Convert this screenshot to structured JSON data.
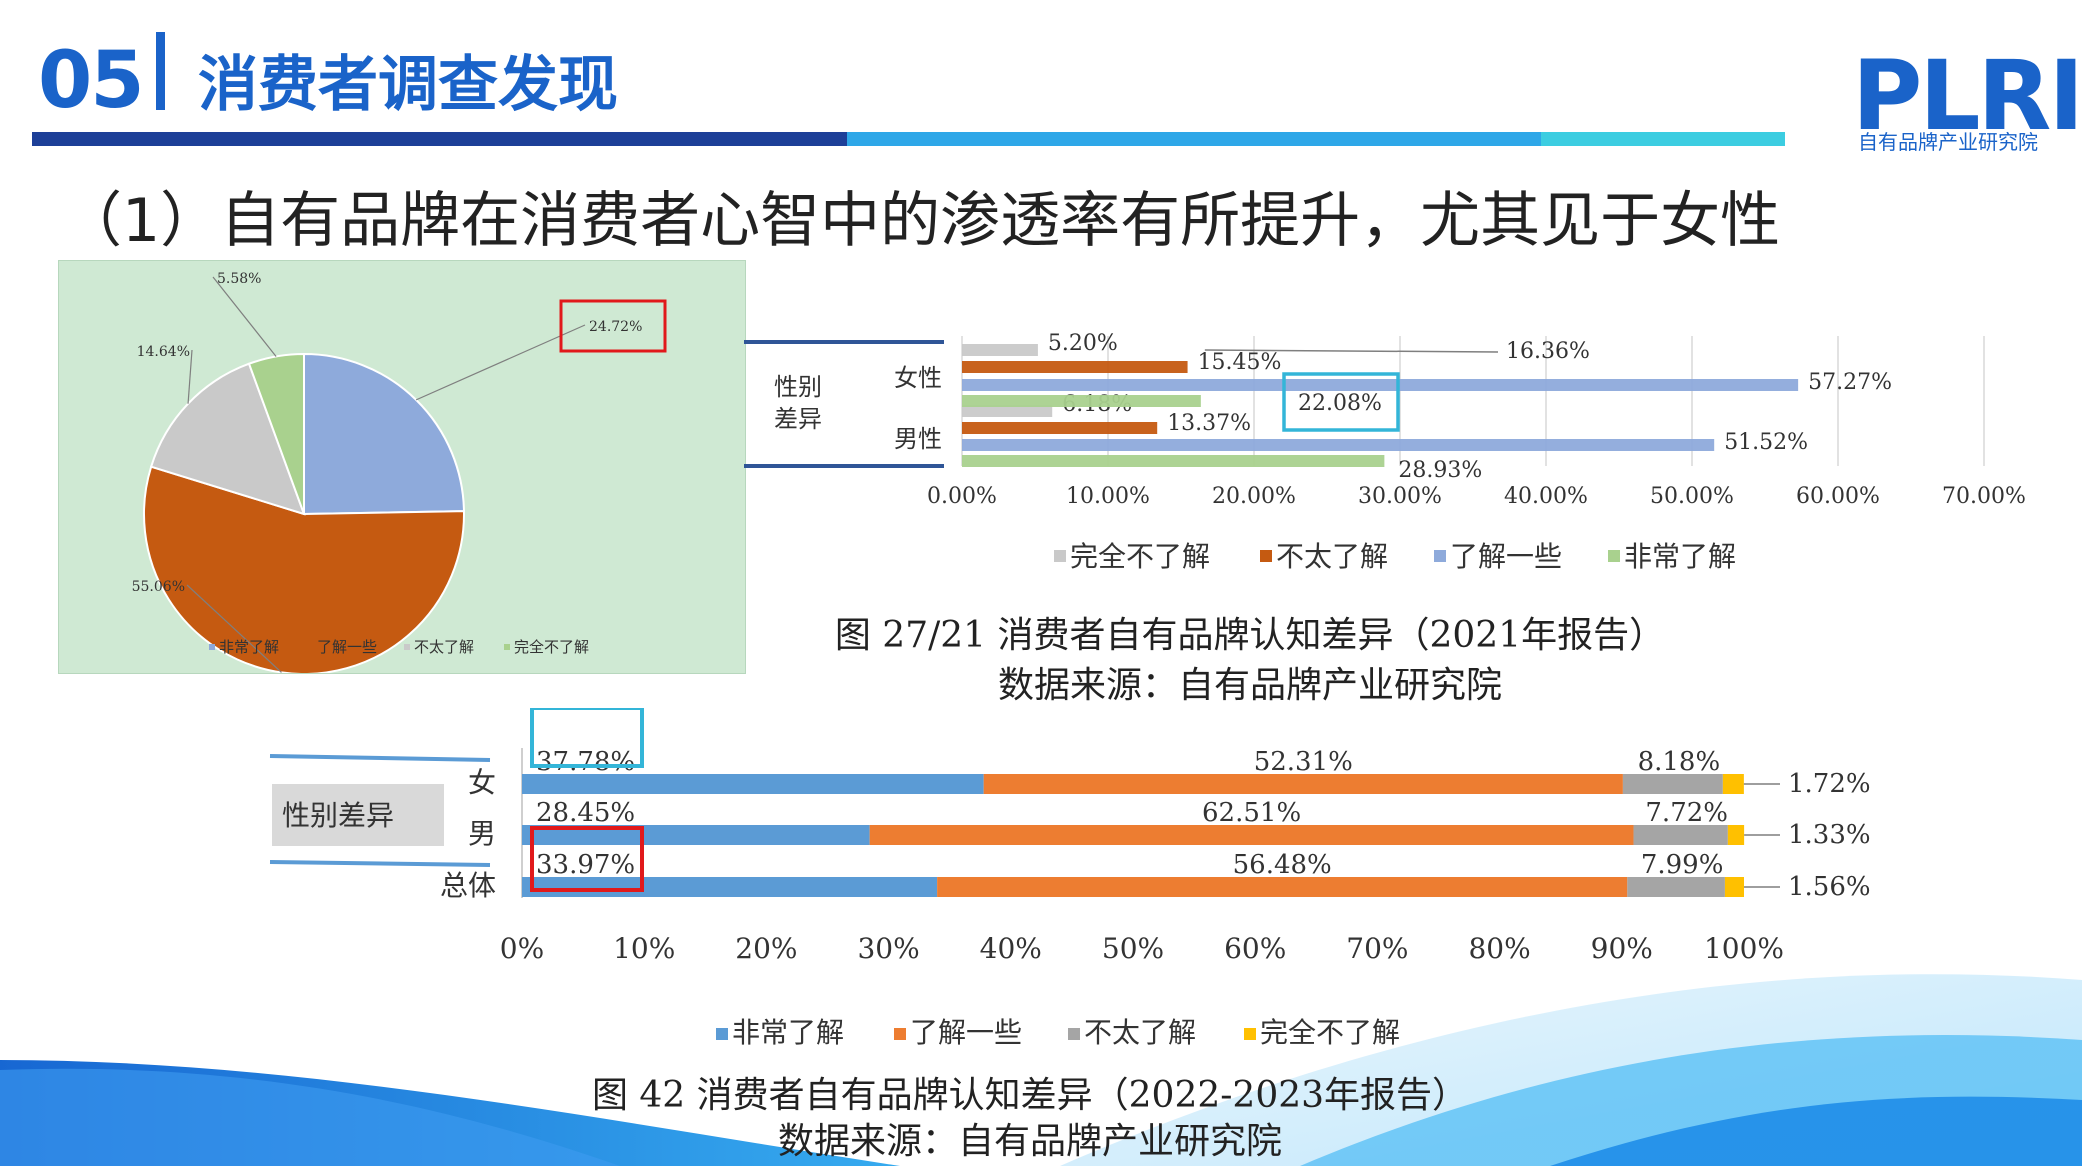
{
  "header": {
    "section_number": "05",
    "section_title": "消费者调查发现",
    "logo_text": "PLRI",
    "logo_subtitle": "自有品牌产业研究院"
  },
  "slide_heading": "（1）自有品牌在消费者心智中的渗透率有所提升，尤其见于女性",
  "colors": {
    "brand_blue": "#1a63c9",
    "pie_blue": "#8eaadb",
    "pie_orange": "#c55a11",
    "pie_gray": "#c9c9c9",
    "pie_green": "#a9d18e",
    "bar2022_blue": "#5b9bd5",
    "bar2022_orange": "#ed7d31",
    "bar2022_gray": "#a5a5a5",
    "bar2022_yellow": "#ffc000",
    "highlight_red": "#e1191b",
    "highlight_cyan": "#33b5d8"
  },
  "chart_data": [
    {
      "type": "pie",
      "labels": [
        "非常了解",
        "了解一些",
        "不太了解",
        "完全不了解"
      ],
      "values": [
        24.72,
        55.06,
        14.64,
        5.58
      ],
      "value_labels": [
        "24.72%",
        "55.06%",
        "14.64%",
        "5.58%"
      ],
      "legend": [
        "非常了解",
        "了解一些",
        "不太了解",
        "完全不了解"
      ],
      "legend_position": "bottom"
    },
    {
      "type": "bar",
      "orientation": "horizontal",
      "categories": [
        "女性",
        "男性"
      ],
      "group_label": "性别差异",
      "series": [
        {
          "name": "完全不了解",
          "values": [
            5.2,
            6.18
          ],
          "labels": [
            "5.20%",
            "6.18%"
          ]
        },
        {
          "name": "不太了解",
          "values": [
            15.45,
            13.37
          ],
          "labels": [
            "15.45%",
            "13.37%"
          ]
        },
        {
          "name": "了解一些",
          "values": [
            57.27,
            51.52
          ],
          "labels": [
            "57.27%",
            "51.52%"
          ]
        },
        {
          "name": "非常了解",
          "values": [
            16.36,
            28.93
          ],
          "labels": [
            "16.36%",
            "28.93%"
          ]
        }
      ],
      "extra_label": "22.08%",
      "xlim": [
        0,
        70
      ],
      "x_ticks": [
        "0.00%",
        "10.00%",
        "20.00%",
        "30.00%",
        "40.00%",
        "50.00%",
        "60.00%",
        "70.00%"
      ],
      "legend": [
        "完全不了解",
        "不太了解",
        "了解一些",
        "非常了解"
      ],
      "legend_position": "bottom"
    },
    {
      "type": "bar",
      "orientation": "horizontal",
      "stacked": true,
      "categories": [
        "女",
        "男",
        "总体"
      ],
      "group_label": "性别差异",
      "series": [
        {
          "name": "非常了解",
          "values": [
            37.78,
            28.45,
            33.97
          ],
          "labels": [
            "37.78%",
            "28.45%",
            "33.97%"
          ]
        },
        {
          "name": "了解一些",
          "values": [
            52.31,
            62.51,
            56.48
          ],
          "labels": [
            "52.31%",
            "62.51%",
            "56.48%"
          ]
        },
        {
          "name": "不太了解",
          "values": [
            8.18,
            7.72,
            7.99
          ],
          "labels": [
            "8.18%",
            "7.72%",
            "7.99%"
          ]
        },
        {
          "name": "完全不了解",
          "values": [
            1.72,
            1.33,
            1.56
          ],
          "labels": [
            "1.72%",
            "1.33%",
            "1.56%"
          ]
        }
      ],
      "xlim": [
        0,
        100
      ],
      "x_ticks": [
        "0%",
        "10%",
        "20%",
        "30%",
        "40%",
        "50%",
        "60%",
        "70%",
        "80%",
        "90%",
        "100%"
      ],
      "legend": [
        "非常了解",
        "了解一些",
        "不太了解",
        "完全不了解"
      ],
      "legend_position": "bottom"
    }
  ],
  "captions": {
    "fig2021_title": "图 27/21 消费者自有品牌认知差异（2021年报告）",
    "fig2021_source": "数据来源：自有品牌产业研究院",
    "fig2022_title": "图 42 消费者自有品牌认知差异（2022-2023年报告）",
    "fig2022_source": "数据来源：自有品牌产业研究院"
  }
}
